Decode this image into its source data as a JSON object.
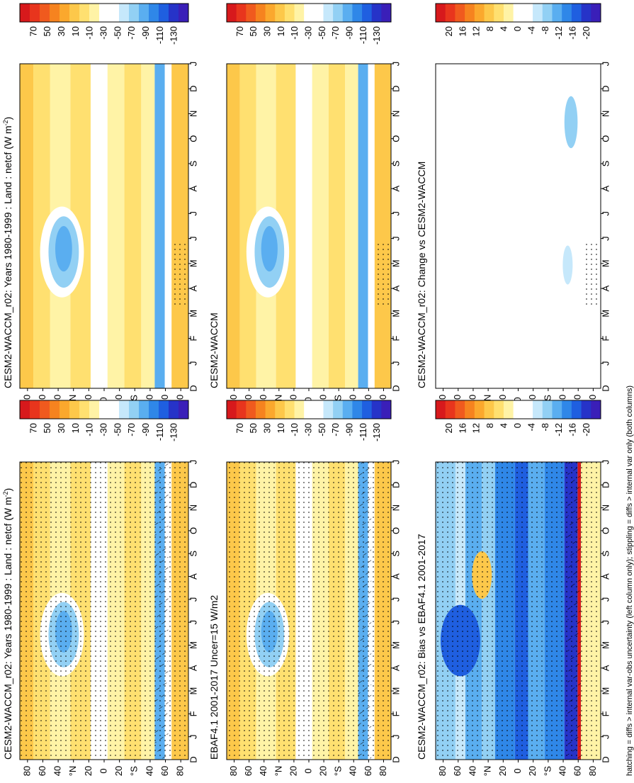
{
  "figure": {
    "footnote": "hatching = diffs > internal var-obs uncertainty (left column only); stippling = diffs > internal var only (both columns)"
  },
  "common_axes": {
    "months": [
      "J",
      "F",
      "M",
      "A",
      "M",
      "J",
      "J",
      "A",
      "S",
      "O",
      "N",
      "D",
      "J"
    ],
    "month_start": "D",
    "lat_ticks": [
      "80",
      "60",
      "40",
      "°N",
      "20",
      "0",
      "20",
      "°S",
      "40",
      "60",
      "80"
    ]
  },
  "colors": {
    "abs_scale": [
      "#d7191c",
      "#e8351d",
      "#f05a1e",
      "#f6831f",
      "#fba82d",
      "#fdc84a",
      "#ffe070",
      "#fff3a6",
      "#ffffff",
      "#ffffff",
      "#c6e8fb",
      "#92d0f4",
      "#5aaef0",
      "#2f87e8",
      "#1f5fe0",
      "#2633c8",
      "#3a1fb8"
    ],
    "diff_scale": [
      "#d7191c",
      "#e8351d",
      "#f05a1e",
      "#f6831f",
      "#fba82d",
      "#fdc84a",
      "#ffe070",
      "#fff3a6",
      "#ffffff",
      "#ffffff",
      "#c6e8fb",
      "#92d0f4",
      "#5aaef0",
      "#2f87e8",
      "#1f5fe0",
      "#2633c8",
      "#3a1fb8"
    ]
  },
  "chart_data": [
    {
      "type": "heatmap",
      "title": "CESM2-WACCM_r02: Years 1980-1999 : Land : netcf (W m",
      "title_sup": "-2",
      "title_end": ")",
      "colorbar_ticks": [
        "70",
        "50",
        "30",
        "10",
        "-10",
        "-30",
        "-50",
        "-70",
        "-90",
        "-110",
        "-130"
      ],
      "stippling": true,
      "hatching": true
    },
    {
      "type": "heatmap",
      "title": "CESM2-WACCM_r02: Years 1980-1999 : Land : netcf (W m",
      "title_sup": "-2",
      "title_end": ")",
      "colorbar_ticks": [
        "70",
        "50",
        "30",
        "10",
        "-10",
        "-30",
        "-50",
        "-70",
        "-90",
        "-110",
        "-130"
      ],
      "stippling": true,
      "hatching": false
    },
    {
      "type": "heatmap",
      "title": "EBAF4.1 2001-2017 Uncer=15 W/m2",
      "colorbar_ticks": [
        "70",
        "50",
        "30",
        "10",
        "-10",
        "-30",
        "-50",
        "-70",
        "-90",
        "-110",
        "-130"
      ],
      "stippling": true,
      "hatching": true
    },
    {
      "type": "heatmap",
      "title": "CESM2-WACCM",
      "colorbar_ticks": [
        "70",
        "50",
        "30",
        "10",
        "-10",
        "-30",
        "-50",
        "-70",
        "-90",
        "-110",
        "-130"
      ],
      "stippling": true,
      "hatching": false
    },
    {
      "type": "heatmap",
      "title": "CESM2-WACCM_r02: Bias vs EBAF4.1 2001-2017",
      "colorbar_ticks": [
        "20",
        "16",
        "12",
        "8",
        "4",
        "0",
        "-4",
        "-8",
        "-12",
        "-16",
        "-20"
      ],
      "stippling": true,
      "hatching": true
    },
    {
      "type": "heatmap",
      "title": "CESM2-WACCM_r02: Change vs CESM2-WACCM",
      "colorbar_ticks": [
        "20",
        "16",
        "12",
        "8",
        "4",
        "0",
        "-4",
        "-8",
        "-12",
        "-16",
        "-20"
      ],
      "stippling": true,
      "hatching": false
    }
  ]
}
